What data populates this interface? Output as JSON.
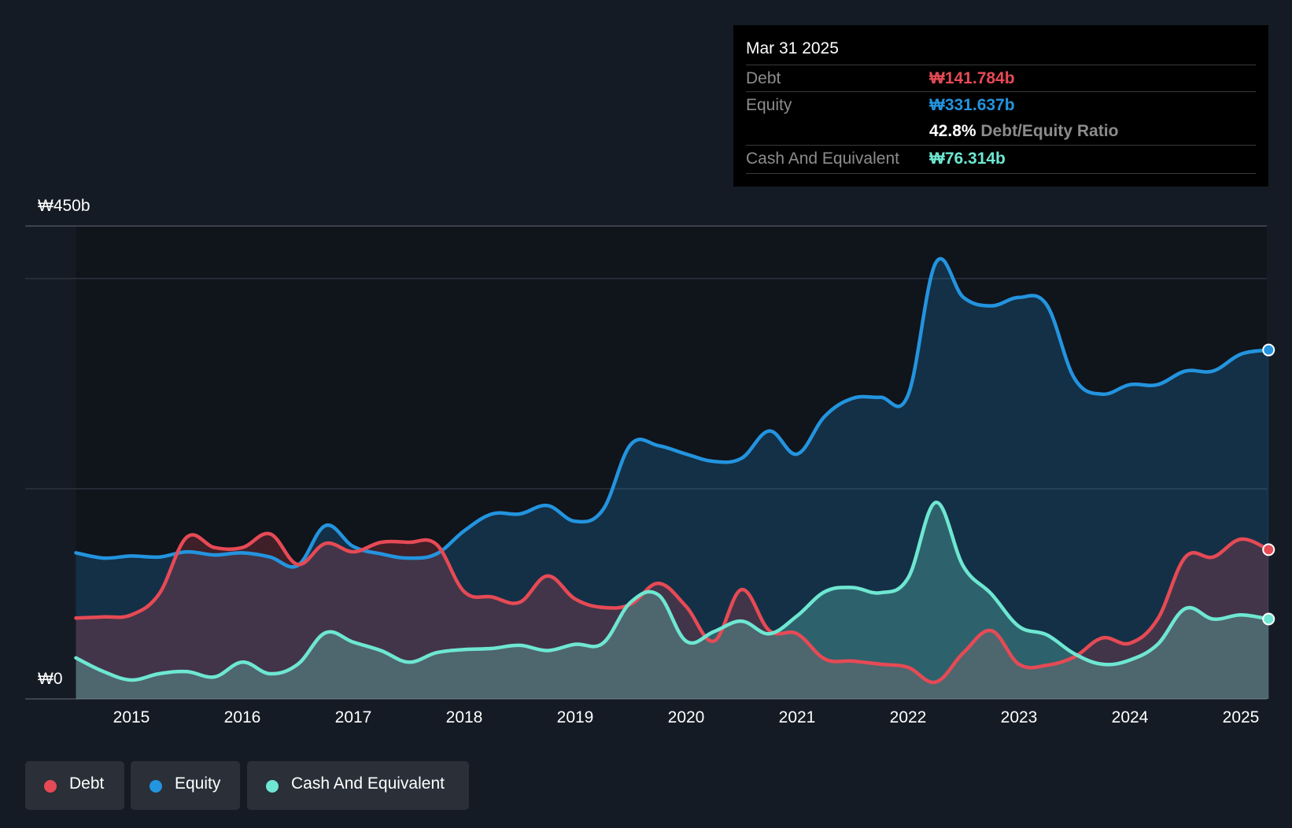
{
  "chart_data": {
    "type": "area",
    "title": "",
    "xlabel": "",
    "ylabel": "",
    "y_axis": {
      "top_label": "₩450b",
      "bottom_label": "₩0",
      "ylim": [
        0,
        450
      ],
      "gridlines": [
        0,
        200,
        400,
        450
      ]
    },
    "x_tick_labels": [
      "2015",
      "2016",
      "2017",
      "2018",
      "2019",
      "2020",
      "2021",
      "2022",
      "2023",
      "2024",
      "2025"
    ],
    "x_range": [
      2014.2,
      2025.25
    ],
    "series": [
      {
        "name": "Equity",
        "color": "#2394df",
        "points": [
          [
            2014.5,
            139
          ],
          [
            2014.75,
            134
          ],
          [
            2015.0,
            136
          ],
          [
            2015.25,
            135
          ],
          [
            2015.5,
            140
          ],
          [
            2015.75,
            137
          ],
          [
            2016.0,
            139
          ],
          [
            2016.25,
            135
          ],
          [
            2016.5,
            127
          ],
          [
            2016.75,
            165
          ],
          [
            2017.0,
            145
          ],
          [
            2017.25,
            138
          ],
          [
            2017.5,
            134
          ],
          [
            2017.75,
            138
          ],
          [
            2018.0,
            160
          ],
          [
            2018.25,
            176
          ],
          [
            2018.5,
            176
          ],
          [
            2018.75,
            184
          ],
          [
            2019.0,
            169
          ],
          [
            2019.25,
            180
          ],
          [
            2019.5,
            242
          ],
          [
            2019.75,
            241
          ],
          [
            2020.0,
            233
          ],
          [
            2020.25,
            226
          ],
          [
            2020.5,
            229
          ],
          [
            2020.75,
            255
          ],
          [
            2021.0,
            233
          ],
          [
            2021.25,
            269
          ],
          [
            2021.5,
            286
          ],
          [
            2021.75,
            287
          ],
          [
            2022.0,
            289
          ],
          [
            2022.25,
            415
          ],
          [
            2022.5,
            382
          ],
          [
            2022.75,
            374
          ],
          [
            2023.0,
            382
          ],
          [
            2023.25,
            375
          ],
          [
            2023.5,
            305
          ],
          [
            2023.75,
            290
          ],
          [
            2024.0,
            299
          ],
          [
            2024.25,
            299
          ],
          [
            2024.5,
            312
          ],
          [
            2024.75,
            312
          ],
          [
            2025.0,
            328
          ],
          [
            2025.25,
            332
          ]
        ]
      },
      {
        "name": "Debt",
        "color": "#e64a55",
        "points": [
          [
            2014.5,
            77
          ],
          [
            2014.75,
            78
          ],
          [
            2015.0,
            80
          ],
          [
            2015.25,
            100
          ],
          [
            2015.5,
            154
          ],
          [
            2015.75,
            144
          ],
          [
            2016.0,
            144
          ],
          [
            2016.25,
            157
          ],
          [
            2016.5,
            128
          ],
          [
            2016.75,
            148
          ],
          [
            2017.0,
            140
          ],
          [
            2017.25,
            149
          ],
          [
            2017.5,
            149
          ],
          [
            2017.75,
            147
          ],
          [
            2018.0,
            102
          ],
          [
            2018.25,
            97
          ],
          [
            2018.5,
            92
          ],
          [
            2018.75,
            117
          ],
          [
            2019.0,
            95
          ],
          [
            2019.25,
            87
          ],
          [
            2019.5,
            90
          ],
          [
            2019.75,
            110
          ],
          [
            2020.0,
            88
          ],
          [
            2020.25,
            55
          ],
          [
            2020.5,
            104
          ],
          [
            2020.75,
            65
          ],
          [
            2021.0,
            62
          ],
          [
            2021.25,
            38
          ],
          [
            2021.5,
            36
          ],
          [
            2021.75,
            33
          ],
          [
            2022.0,
            30
          ],
          [
            2022.25,
            16
          ],
          [
            2022.5,
            44
          ],
          [
            2022.75,
            65
          ],
          [
            2023.0,
            33
          ],
          [
            2023.25,
            32
          ],
          [
            2023.5,
            40
          ],
          [
            2023.75,
            58
          ],
          [
            2024.0,
            53
          ],
          [
            2024.25,
            76
          ],
          [
            2024.5,
            135
          ],
          [
            2024.75,
            135
          ],
          [
            2025.0,
            152
          ],
          [
            2025.25,
            142
          ]
        ]
      },
      {
        "name": "Cash And Equivalent",
        "color": "#6ee7d2",
        "points": [
          [
            2014.5,
            39
          ],
          [
            2014.75,
            26
          ],
          [
            2015.0,
            18
          ],
          [
            2015.25,
            24
          ],
          [
            2015.5,
            26
          ],
          [
            2015.75,
            21
          ],
          [
            2016.0,
            35
          ],
          [
            2016.25,
            24
          ],
          [
            2016.5,
            33
          ],
          [
            2016.75,
            63
          ],
          [
            2017.0,
            54
          ],
          [
            2017.25,
            46
          ],
          [
            2017.5,
            35
          ],
          [
            2017.75,
            44
          ],
          [
            2018.0,
            47
          ],
          [
            2018.25,
            48
          ],
          [
            2018.5,
            51
          ],
          [
            2018.75,
            46
          ],
          [
            2019.0,
            52
          ],
          [
            2019.25,
            53
          ],
          [
            2019.5,
            92
          ],
          [
            2019.75,
            99
          ],
          [
            2020.0,
            55
          ],
          [
            2020.25,
            64
          ],
          [
            2020.5,
            74
          ],
          [
            2020.75,
            62
          ],
          [
            2021.0,
            79
          ],
          [
            2021.25,
            102
          ],
          [
            2021.5,
            106
          ],
          [
            2021.75,
            101
          ],
          [
            2022.0,
            115
          ],
          [
            2022.25,
            187
          ],
          [
            2022.5,
            126
          ],
          [
            2022.75,
            100
          ],
          [
            2023.0,
            69
          ],
          [
            2023.25,
            61
          ],
          [
            2023.5,
            43
          ],
          [
            2023.75,
            33
          ],
          [
            2024.0,
            37
          ],
          [
            2024.25,
            52
          ],
          [
            2024.5,
            86
          ],
          [
            2024.75,
            76
          ],
          [
            2025.0,
            80
          ],
          [
            2025.25,
            76
          ]
        ]
      }
    ],
    "tooltip": {
      "date": "Mar 31 2025",
      "debt_label": "Debt",
      "debt_value": "₩141.784b",
      "equity_label": "Equity",
      "equity_value": "₩331.637b",
      "ratio_value": "42.8%",
      "ratio_label": "Debt/Equity Ratio",
      "cash_label": "Cash And Equivalent",
      "cash_value": "₩76.314b"
    },
    "legend": [
      "Debt",
      "Equity",
      "Cash And Equivalent"
    ]
  },
  "colors": {
    "background": "#151b24",
    "plot_background": "#10141b",
    "debt": "#e64a55",
    "equity": "#2394df",
    "cash": "#6ee7d2"
  }
}
